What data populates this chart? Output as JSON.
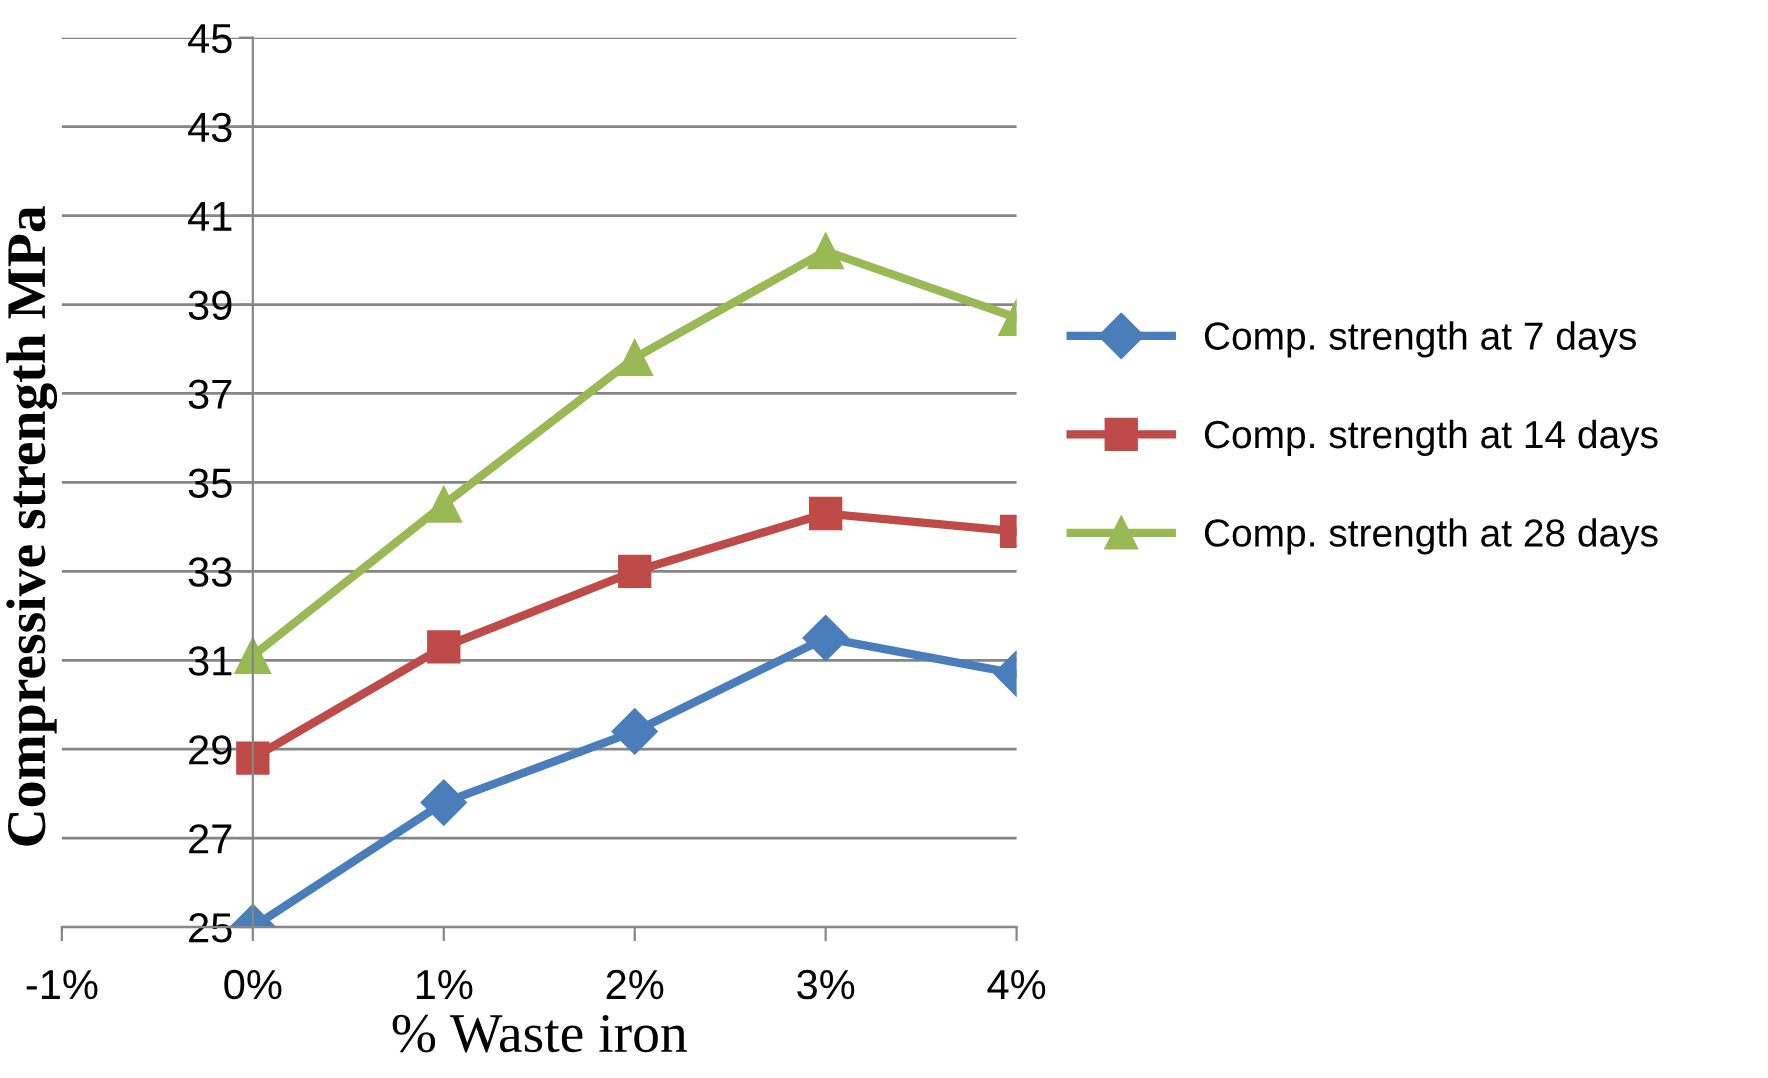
{
  "chart_data": {
    "type": "line",
    "xlabel": "% Waste iron",
    "ylabel": "Compressive strength MPa",
    "x": [
      0,
      1,
      2,
      3,
      4
    ],
    "series": [
      {
        "name": "Comp. strength at 7 days",
        "color": "#4a7ebb",
        "values": [
          25.0,
          27.8,
          29.4,
          31.5,
          30.7
        ],
        "marker": "diamond"
      },
      {
        "name": "Comp. strength at 14 days",
        "color": "#be4b48",
        "values": [
          28.8,
          31.3,
          33.0,
          34.3,
          33.9
        ],
        "marker": "square"
      },
      {
        "name": "Comp. strength at 28 days",
        "color": "#98b954",
        "values": [
          31.1,
          34.5,
          37.8,
          40.2,
          38.7
        ],
        "marker": "triangle"
      }
    ],
    "xlim": [
      -1,
      4
    ],
    "xticks": [
      {
        "value": -1,
        "label": "-1%"
      },
      {
        "value": 0,
        "label": "0%"
      },
      {
        "value": 1,
        "label": "1%"
      },
      {
        "value": 2,
        "label": "2%"
      },
      {
        "value": 3,
        "label": "3%"
      },
      {
        "value": 4,
        "label": "4%"
      }
    ],
    "ylim": [
      25,
      45
    ],
    "yticks": [
      25,
      27,
      29,
      31,
      33,
      35,
      37,
      39,
      41,
      43,
      45
    ],
    "grid": "y",
    "legend": "right",
    "line_style": "solid"
  }
}
